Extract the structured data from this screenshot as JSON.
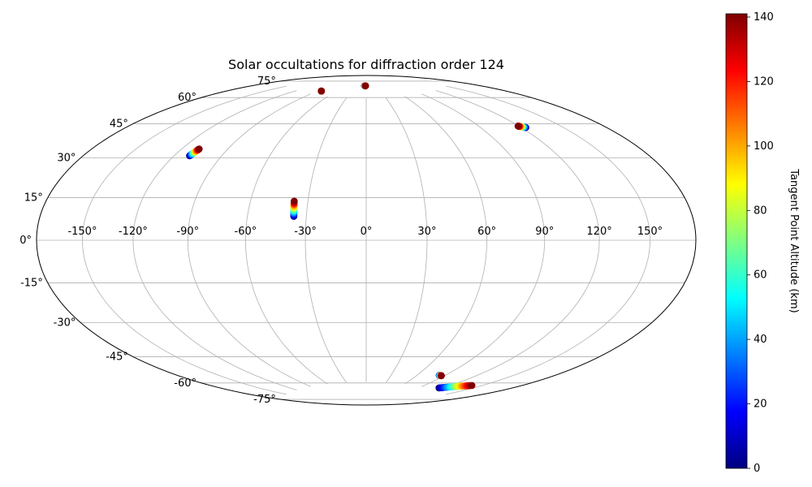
{
  "chart_data": {
    "type": "scatter",
    "projection": "hammer",
    "title": "Solar occultations for diffraction order 124",
    "grid": true,
    "x_ticks": [
      "-150°",
      "-120°",
      "-90°",
      "-60°",
      "-30°",
      "0°",
      "30°",
      "60°",
      "90°",
      "120°",
      "150°"
    ],
    "x_tick_values": [
      -150,
      -120,
      -90,
      -60,
      -30,
      0,
      30,
      60,
      90,
      120,
      150
    ],
    "y_ticks": [
      "75°",
      "60°",
      "45°",
      "30°",
      "15°",
      "0°",
      "-15°",
      "-30°",
      "-45°",
      "-60°",
      "-75°"
    ],
    "y_tick_values": [
      75,
      60,
      45,
      30,
      15,
      0,
      -15,
      -30,
      -45,
      -60,
      -75
    ],
    "colorbar": {
      "label": "Tangent Point Altitude (km)",
      "colormap": "jet",
      "range": [
        0,
        141
      ],
      "ticks": [
        "0",
        "20",
        "40",
        "60",
        "80",
        "100",
        "120",
        "140"
      ],
      "tick_values": [
        0,
        20,
        40,
        60,
        80,
        100,
        120,
        140
      ]
    },
    "series": [
      {
        "lon_start": -84.5,
        "lat_start": 77.4,
        "lon_end": -84.5,
        "lat_end": 77.4,
        "alt_min": 0,
        "alt_max": 141
      },
      {
        "lon_start": -5.0,
        "lat_start": 83.0,
        "lon_end": -2.0,
        "lat_end": 83.0,
        "alt_min": 0,
        "alt_max": 141
      },
      {
        "lon_start": 123.3,
        "lat_start": 51.2,
        "lon_end": 119.4,
        "lat_end": 52.4,
        "alt_min": 0,
        "alt_max": 141
      },
      {
        "lon_start": -110.2,
        "lat_start": 38.1,
        "lon_end": -108.6,
        "lat_end": 41.6,
        "alt_min": 0,
        "alt_max": 141
      },
      {
        "lon_start": -36.3,
        "lat_start": 11.6,
        "lon_end": -37.1,
        "lat_end": 19.1,
        "alt_min": 0,
        "alt_max": 141
      },
      {
        "lon_start": 84.0,
        "lat_start": -68.0,
        "lon_end": 86.7,
        "lat_end": -68.0,
        "alt_min": 0,
        "alt_max": 141
      },
      {
        "lon_start": 116.0,
        "lat_start": -73.8,
        "lon_end": 141.0,
        "lat_end": -68.9,
        "alt_min": 0,
        "alt_max": 141
      }
    ]
  }
}
